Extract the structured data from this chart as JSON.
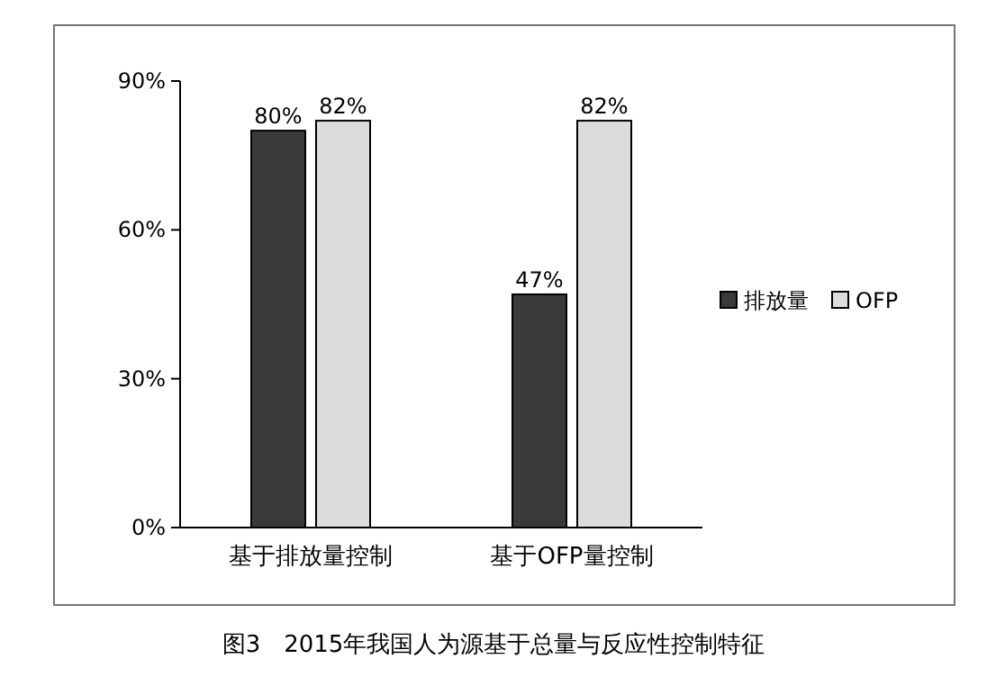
{
  "chart_data": {
    "type": "bar",
    "title": "图3　2015年我国人为源基于总量与反应性控制特征",
    "categories": [
      "基于排放量控制",
      "基于OFP量控制"
    ],
    "series": [
      {
        "name": "排放量",
        "color": "#3a3a3a",
        "values": [
          80,
          47
        ],
        "value_labels": [
          "80%",
          "47%"
        ]
      },
      {
        "name": "OFP",
        "color": "#dcdcdc",
        "values": [
          82,
          82
        ],
        "value_labels": [
          "82%",
          "82%"
        ]
      }
    ],
    "ylim": [
      0,
      90
    ],
    "yticks": [
      {
        "value": 0,
        "label": "0%"
      },
      {
        "value": 30,
        "label": "30%"
      },
      {
        "value": 60,
        "label": "60%"
      },
      {
        "value": 90,
        "label": "90%"
      }
    ],
    "legend": "right"
  }
}
